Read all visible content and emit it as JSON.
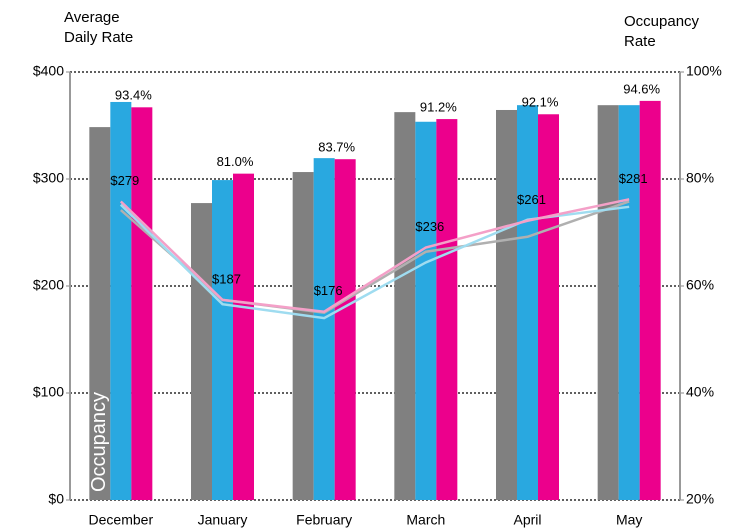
{
  "chart_data": {
    "type": "bar",
    "y_label": "Average Daily Rate",
    "y2_label": "Occupancy Rate",
    "annotation": "Occupancy",
    "categories": [
      "December",
      "January",
      "February",
      "March",
      "April",
      "May"
    ],
    "ylim": [
      0,
      400
    ],
    "yticks": [
      {
        "value": 0,
        "label": "$0"
      },
      {
        "value": 100,
        "label": "$100"
      },
      {
        "value": 200,
        "label": "$200"
      },
      {
        "value": 300,
        "label": "$300"
      },
      {
        "value": 400,
        "label": "$400"
      }
    ],
    "y2lim": [
      20,
      100
    ],
    "y2ticks": [
      {
        "value": 20,
        "label": "20%"
      },
      {
        "value": 40,
        "label": "40%"
      },
      {
        "value": 60,
        "label": "60%"
      },
      {
        "value": 80,
        "label": "80%"
      },
      {
        "value": 100,
        "label": "100%"
      }
    ],
    "grid": true,
    "series": [
      {
        "type": "bar",
        "axis": "y2",
        "color": "#808080",
        "values": [
          89.7,
          75.5,
          81.3,
          92.5,
          92.9,
          93.8
        ]
      },
      {
        "type": "bar",
        "axis": "y2",
        "color": "#29a8e0",
        "values": [
          94.4,
          79.8,
          83.9,
          90.7,
          93.8,
          93.8
        ]
      },
      {
        "type": "bar",
        "axis": "y2",
        "color": "#ec008c",
        "values": [
          93.4,
          81.0,
          83.7,
          91.2,
          92.1,
          94.6
        ],
        "value_labels": [
          "93.4%",
          "81.0%",
          "83.7%",
          "91.2%",
          "92.1%",
          "94.6%"
        ]
      },
      {
        "type": "line",
        "color": "#b0b0b0",
        "values": [
          271,
          187,
          175,
          232,
          246,
          279
        ]
      },
      {
        "type": "line",
        "color": "#9fdcf0",
        "values": [
          276,
          183,
          170,
          222,
          262,
          274
        ]
      },
      {
        "type": "line",
        "color": "#f4a0c8",
        "values": [
          279,
          187,
          176,
          236,
          261,
          281
        ],
        "value_labels": [
          "$279",
          "$187",
          "$176",
          "$236",
          "$261",
          "$281"
        ]
      }
    ]
  }
}
